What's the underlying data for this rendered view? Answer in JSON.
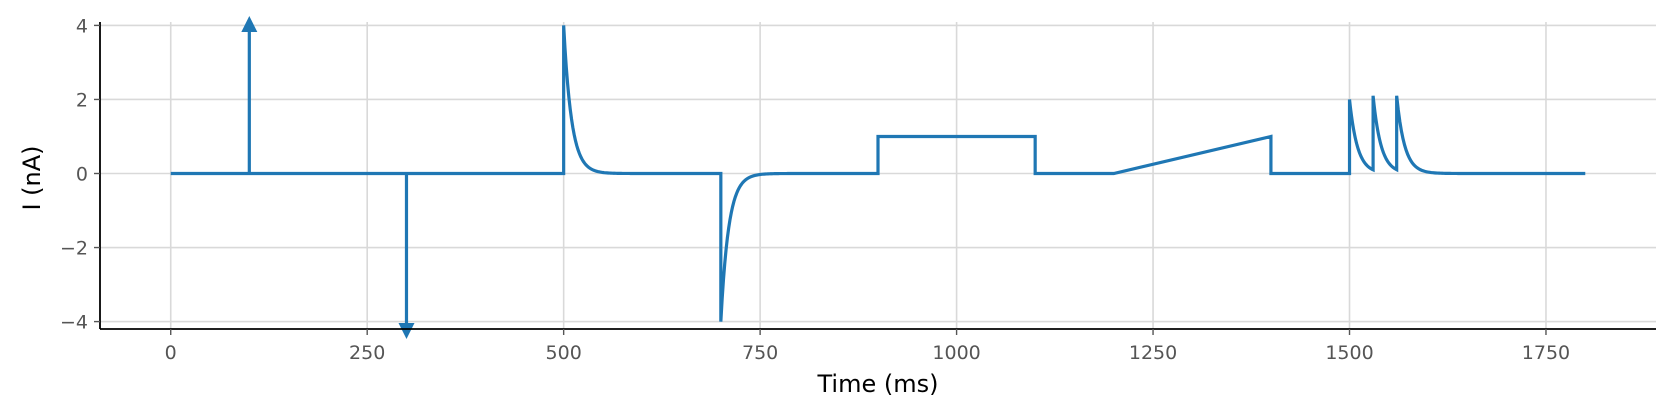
{
  "chart_data": {
    "type": "line",
    "xlabel": "Time (ms)",
    "ylabel": "I (nA)",
    "xlim": [
      -90,
      1890
    ],
    "ylim": [
      -4.2,
      4.2
    ],
    "xticks": [
      0,
      250,
      500,
      750,
      1000,
      1250,
      1500,
      1750
    ],
    "yticks": [
      -4,
      -2,
      0,
      2,
      4
    ],
    "xtick_labels": [
      "0",
      "250",
      "500",
      "750",
      "1000",
      "1250",
      "1500",
      "1750"
    ],
    "ytick_labels": [
      "−4",
      "−2",
      "0",
      "2",
      "4"
    ],
    "grid": true,
    "line_color": "#1f77b4",
    "series": [
      {
        "segments": [
          {
            "kind": "line",
            "points": [
              [
                0,
                0
              ],
              [
                100,
                0
              ]
            ]
          },
          {
            "kind": "impulse",
            "x": 100,
            "direction": "up"
          },
          {
            "kind": "line",
            "points": [
              [
                100,
                0
              ],
              [
                300,
                0
              ]
            ]
          },
          {
            "kind": "impulse",
            "x": 300,
            "direction": "down"
          },
          {
            "kind": "line",
            "points": [
              [
                300,
                0
              ],
              [
                500,
                0
              ],
              [
                500,
                4
              ]
            ]
          },
          {
            "kind": "exp_decay",
            "x0": 500,
            "x1": 700,
            "amplitude": 4,
            "tau": 10
          },
          {
            "kind": "line",
            "points": [
              [
                700,
                0
              ],
              [
                700,
                -4
              ]
            ]
          },
          {
            "kind": "exp_decay",
            "x0": 700,
            "x1": 900,
            "amplitude": -4,
            "tau": 10
          },
          {
            "kind": "line",
            "points": [
              [
                900,
                0
              ],
              [
                900,
                1
              ],
              [
                1100,
                1
              ],
              [
                1100,
                0
              ],
              [
                1200,
                0
              ],
              [
                1400,
                1
              ],
              [
                1400,
                0
              ],
              [
                1500,
                0
              ],
              [
                1500,
                2
              ]
            ]
          },
          {
            "kind": "exp_decay",
            "x0": 1500,
            "x1": 1530,
            "amplitude": 2,
            "tau": 10
          },
          {
            "kind": "exp_decay",
            "x0": 1530,
            "x1": 1560,
            "amplitude": 2.1,
            "tau": 10
          },
          {
            "kind": "exp_decay",
            "x0": 1560,
            "x1": 1800,
            "amplitude": 2.1,
            "tau": 10
          }
        ]
      }
    ]
  }
}
